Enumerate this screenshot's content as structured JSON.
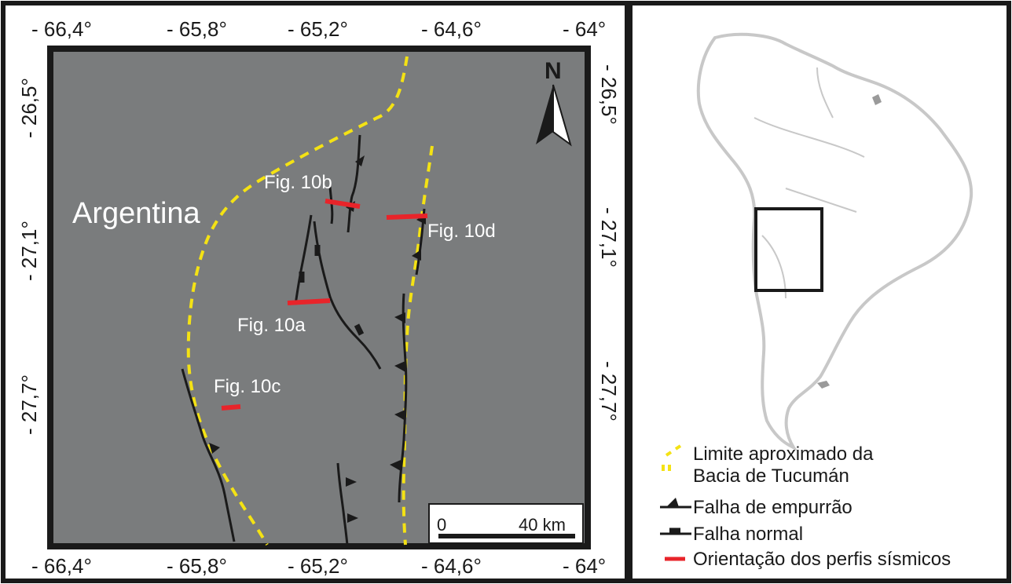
{
  "colors": {
    "map_background": "#7a7c7d",
    "basin_limit": "#f4e214",
    "fault": "#1a1a1a",
    "seismic_profile": "#e8242a",
    "label_text": "#ffffff",
    "continent_outline": "#c8c8c8"
  },
  "main_map": {
    "top_ticks": [
      "- 66,4°",
      "- 65,8°",
      "- 65,2°",
      "- 64,6°",
      "- 64°"
    ],
    "bottom_ticks": [
      "- 66,4°",
      "- 65,8°",
      "- 65,2°",
      "- 64,6°",
      "- 64°"
    ],
    "left_ticks": [
      "- 26,5°",
      "- 27,1°",
      "- 27,7°"
    ],
    "right_ticks": [
      "- 26,5°",
      "- 27,1°",
      "- 27,7°"
    ],
    "country_label": "Argentina",
    "north_label": "N",
    "north_icon": "north-arrow-icon",
    "profiles": [
      {
        "id": "10a",
        "label": "Fig. 10a"
      },
      {
        "id": "10b",
        "label": "Fig. 10b"
      },
      {
        "id": "10c",
        "label": "Fig. 10c"
      },
      {
        "id": "10d",
        "label": "Fig. 10d"
      }
    ],
    "scale_bar": {
      "start_label": "0",
      "end_label": "40 km"
    }
  },
  "inset_map": {
    "region": "south-america-outline",
    "extent_box_icon": "study-area-box-icon"
  },
  "legend": {
    "basin_limit_line1": "Limite aproximado da",
    "basin_limit_line2": "Bacia de Tucumán",
    "thrust_fault": "Falha de empurrão",
    "normal_fault": "Falha normal",
    "seismic_profiles": "Orientação dos perfis sísmicos"
  }
}
